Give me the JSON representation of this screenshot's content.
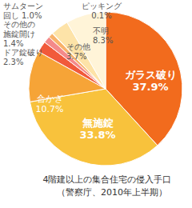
{
  "chart_data": {
    "type": "pie",
    "title": "4階建以上の集合住宅の侵入手口",
    "subtitle": "（警察庁、2010年上半期）",
    "categories": [
      "ガラス破り",
      "無施錠",
      "合かぎ",
      "ドア錠破り",
      "その他の施錠開け",
      "サムターン回し",
      "ピッキング",
      "その他",
      "不明"
    ],
    "values": [
      37.9,
      33.8,
      10.7,
      2.3,
      1.4,
      1.0,
      0.1,
      3.7,
      8.3
    ],
    "value_labels": [
      "37.9%",
      "33.8%",
      "10.7%",
      "2.3%",
      "1.4%",
      "1.0%",
      "0.1%",
      "3.7%",
      "8.3%"
    ],
    "colors": [
      "#f26b1d",
      "#f8c23c",
      "#f6a437",
      "#f15a3b",
      "#f48a8a",
      "#f8b26a",
      "#f5d06e",
      "#fde3a8",
      "#fff4d8"
    ],
    "data_labels": true
  }
}
